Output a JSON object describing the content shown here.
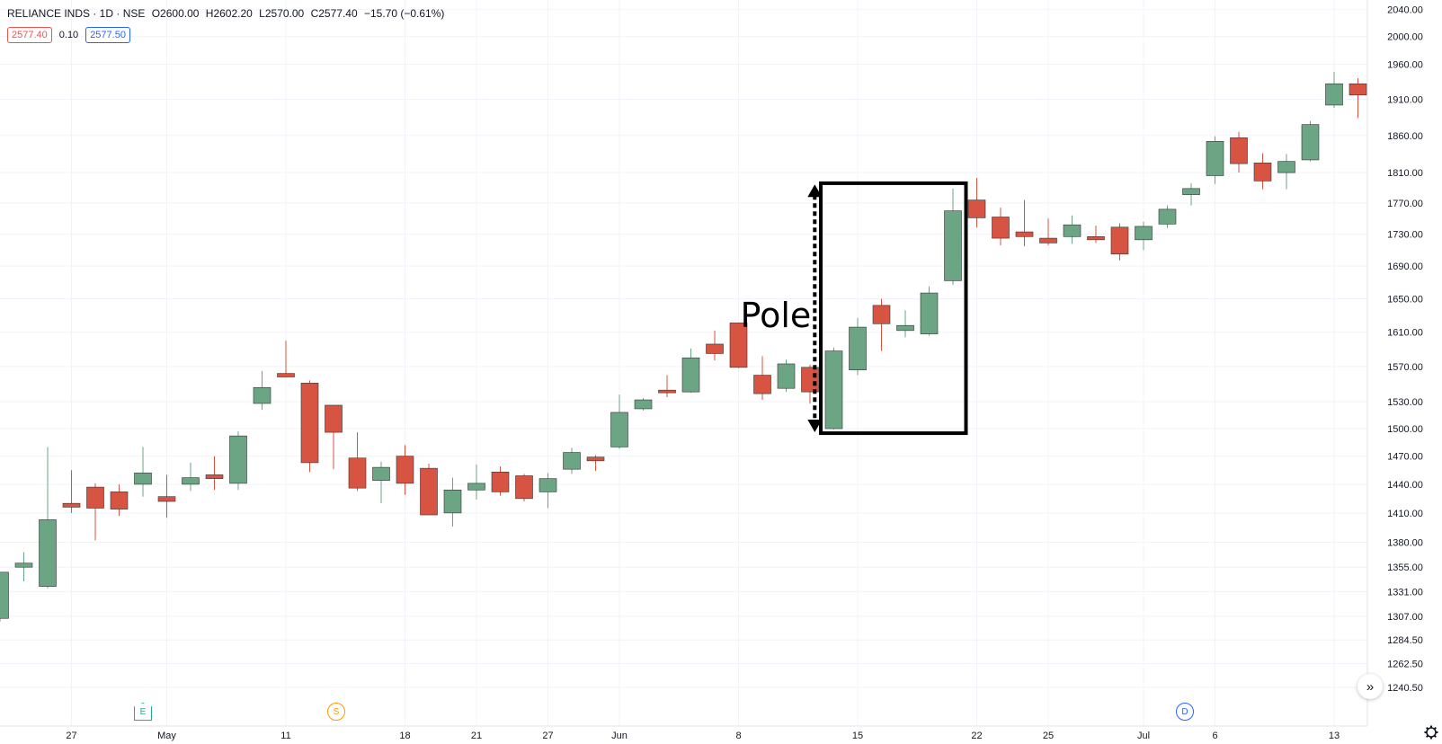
{
  "header": {
    "symbol": "RELIANCE INDS · 1D · NSE",
    "open": "O2600.00",
    "high": "H2602.20",
    "low": "L2570.00",
    "close": "C2577.40",
    "change": "−15.70 (−0.61%)"
  },
  "price_boxes": {
    "bid": "2577.40",
    "spread": "0.10",
    "ask": "2577.50"
  },
  "markers": {
    "earnings": "E",
    "split": "S",
    "dividend": "D"
  },
  "scroll_button": "»",
  "annotation": {
    "label": "Pole"
  },
  "colors": {
    "up": "#6ba583",
    "down": "#d75442",
    "grid": "#f0f3fa",
    "axis_text": "#131722"
  },
  "chart_data": {
    "type": "candlestick",
    "y_axis": {
      "scale": "log",
      "ylim": [
        1230,
        2045
      ],
      "position": "right",
      "ticks": [
        "2040.00",
        "2000.00",
        "1960.00",
        "1910.00",
        "1860.00",
        "1810.00",
        "1770.00",
        "1730.00",
        "1690.00",
        "1650.00",
        "1610.00",
        "1570.00",
        "1530.00",
        "1500.00",
        "1470.00",
        "1440.00",
        "1410.00",
        "1380.00",
        "1355.00",
        "1331.00",
        "1307.00",
        "1284.50",
        "1262.50",
        "1240.50"
      ]
    },
    "x_axis": {
      "ticks": [
        {
          "label": "27",
          "index": 3
        },
        {
          "label": "May",
          "index": 7
        },
        {
          "label": "11",
          "index": 12
        },
        {
          "label": "18",
          "index": 17
        },
        {
          "label": "21",
          "index": 20
        },
        {
          "label": "27",
          "index": 23
        },
        {
          "label": "Jun",
          "index": 26
        },
        {
          "label": "8",
          "index": 31
        },
        {
          "label": "15",
          "index": 36
        },
        {
          "label": "22",
          "index": 41
        },
        {
          "label": "25",
          "index": 44
        },
        {
          "label": "Jul",
          "index": 48
        },
        {
          "label": "6",
          "index": 51
        },
        {
          "label": "13",
          "index": 56
        }
      ]
    },
    "candles": [
      {
        "o": 1305,
        "h": 1350,
        "l": 1302,
        "c": 1350
      },
      {
        "o": 1355,
        "h": 1370,
        "l": 1341,
        "c": 1359
      },
      {
        "o": 1336,
        "h": 1480,
        "l": 1334,
        "c": 1403
      },
      {
        "o": 1420,
        "h": 1455,
        "l": 1410,
        "c": 1416
      },
      {
        "o": 1437,
        "h": 1441,
        "l": 1382,
        "c": 1415
      },
      {
        "o": 1432,
        "h": 1440,
        "l": 1407,
        "c": 1414
      },
      {
        "o": 1440,
        "h": 1480,
        "l": 1427,
        "c": 1452
      },
      {
        "o": 1427,
        "h": 1450,
        "l": 1405,
        "c": 1422
      },
      {
        "o": 1440,
        "h": 1463,
        "l": 1433,
        "c": 1447
      },
      {
        "o": 1450,
        "h": 1470,
        "l": 1434,
        "c": 1446
      },
      {
        "o": 1441,
        "h": 1497,
        "l": 1434,
        "c": 1492
      },
      {
        "o": 1528,
        "h": 1565,
        "l": 1521,
        "c": 1546
      },
      {
        "o": 1562,
        "h": 1600,
        "l": 1558,
        "c": 1558
      },
      {
        "o": 1551,
        "h": 1554,
        "l": 1453,
        "c": 1463
      },
      {
        "o": 1526,
        "h": 1526,
        "l": 1456,
        "c": 1496
      },
      {
        "o": 1468,
        "h": 1496,
        "l": 1433,
        "c": 1436
      },
      {
        "o": 1444,
        "h": 1464,
        "l": 1420,
        "c": 1458
      },
      {
        "o": 1470,
        "h": 1482,
        "l": 1429,
        "c": 1441
      },
      {
        "o": 1457,
        "h": 1462,
        "l": 1408,
        "c": 1408
      },
      {
        "o": 1410,
        "h": 1447,
        "l": 1396,
        "c": 1434
      },
      {
        "o": 1434,
        "h": 1461,
        "l": 1424,
        "c": 1441
      },
      {
        "o": 1453,
        "h": 1459,
        "l": 1428,
        "c": 1432
      },
      {
        "o": 1449,
        "h": 1451,
        "l": 1422,
        "c": 1425
      },
      {
        "o": 1432,
        "h": 1452,
        "l": 1415,
        "c": 1446
      },
      {
        "o": 1456,
        "h": 1479,
        "l": 1451,
        "c": 1474
      },
      {
        "o": 1469,
        "h": 1471,
        "l": 1454,
        "c": 1465
      },
      {
        "o": 1480,
        "h": 1538,
        "l": 1478,
        "c": 1518
      },
      {
        "o": 1522,
        "h": 1534,
        "l": 1520,
        "c": 1532
      },
      {
        "o": 1543,
        "h": 1560,
        "l": 1535,
        "c": 1540
      },
      {
        "o": 1541,
        "h": 1591,
        "l": 1540,
        "c": 1580
      },
      {
        "o": 1596,
        "h": 1612,
        "l": 1577,
        "c": 1585
      },
      {
        "o": 1621,
        "h": 1621,
        "l": 1568,
        "c": 1569
      },
      {
        "o": 1560,
        "h": 1582,
        "l": 1532,
        "c": 1539
      },
      {
        "o": 1545,
        "h": 1578,
        "l": 1541,
        "c": 1573
      },
      {
        "o": 1569,
        "h": 1572,
        "l": 1528,
        "c": 1541
      },
      {
        "o": 1500,
        "h": 1592,
        "l": 1499,
        "c": 1588
      },
      {
        "o": 1566,
        "h": 1627,
        "l": 1560,
        "c": 1616
      },
      {
        "o": 1642,
        "h": 1650,
        "l": 1588,
        "c": 1620
      },
      {
        "o": 1612,
        "h": 1636,
        "l": 1604,
        "c": 1618
      },
      {
        "o": 1608,
        "h": 1665,
        "l": 1606,
        "c": 1657
      },
      {
        "o": 1672,
        "h": 1789,
        "l": 1667,
        "c": 1760
      },
      {
        "o": 1774,
        "h": 1803,
        "l": 1739,
        "c": 1751
      },
      {
        "o": 1752,
        "h": 1764,
        "l": 1716,
        "c": 1725
      },
      {
        "o": 1733,
        "h": 1774,
        "l": 1715,
        "c": 1727
      },
      {
        "o": 1725,
        "h": 1750,
        "l": 1716,
        "c": 1719
      },
      {
        "o": 1727,
        "h": 1754,
        "l": 1718,
        "c": 1742
      },
      {
        "o": 1727,
        "h": 1741,
        "l": 1719,
        "c": 1723
      },
      {
        "o": 1739,
        "h": 1744,
        "l": 1697,
        "c": 1705
      },
      {
        "o": 1723,
        "h": 1746,
        "l": 1710,
        "c": 1740
      },
      {
        "o": 1743,
        "h": 1767,
        "l": 1738,
        "c": 1762
      },
      {
        "o": 1781,
        "h": 1796,
        "l": 1767,
        "c": 1789
      },
      {
        "o": 1806,
        "h": 1859,
        "l": 1795,
        "c": 1852
      },
      {
        "o": 1857,
        "h": 1865,
        "l": 1810,
        "c": 1822
      },
      {
        "o": 1823,
        "h": 1836,
        "l": 1788,
        "c": 1799
      },
      {
        "o": 1810,
        "h": 1835,
        "l": 1788,
        "c": 1825
      },
      {
        "o": 1827,
        "h": 1880,
        "l": 1825,
        "c": 1875
      },
      {
        "o": 1902,
        "h": 1949,
        "l": 1898,
        "c": 1932
      },
      {
        "o": 1932,
        "h": 1940,
        "l": 1884,
        "c": 1916
      }
    ],
    "annotations": [
      {
        "type": "rectangle",
        "label": "",
        "x_from": 35,
        "x_to": 40,
        "y_from": 1495,
        "y_to": 1796
      },
      {
        "type": "double-arrow",
        "label": "Pole",
        "x": 34.2,
        "y_from": 1498,
        "y_to": 1792
      }
    ]
  }
}
